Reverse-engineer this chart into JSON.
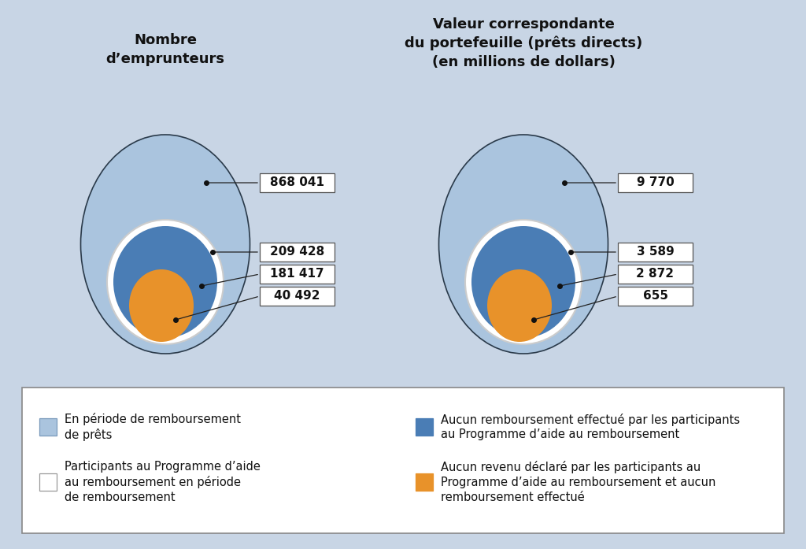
{
  "bg_color": "#c8d5e5",
  "title_left": "Nombre\nd’emprunteurs",
  "title_right": "Valeur correspondante\ndu portefeuille (prêts directs)\n(en millions de dollars)",
  "left_values": [
    "868 041",
    "209 428",
    "181 417",
    "40 492"
  ],
  "right_values": [
    "9 770",
    "3 589",
    "2 872",
    "655"
  ],
  "legend_items": [
    {
      "color": "#aac4de",
      "edge": "#7a9abb",
      "text": "En période de remboursement\nde prêts"
    },
    {
      "color": "#ffffff",
      "edge": "#999999",
      "text": "Participants au Programme d’aide\nau remboursement en période\nde remboursement"
    },
    {
      "color": "#4a7db5",
      "edge": "#4a7db5",
      "text": "Aucun remboursement effectué par les participants\nau Programme d’aide au remboursement"
    },
    {
      "color": "#e8922a",
      "edge": "#e8922a",
      "text": "Aucun revenu déclaré par les participants au\nProgramme d’aide au remboursement et aucun\nremboursement effectué"
    }
  ],
  "light_blue": "#aac4de",
  "white": "#ffffff",
  "dark_blue": "#4a7db5",
  "orange": "#e8922a",
  "title_fontsize": 13,
  "label_fontsize": 11,
  "legend_fontsize": 10.5
}
